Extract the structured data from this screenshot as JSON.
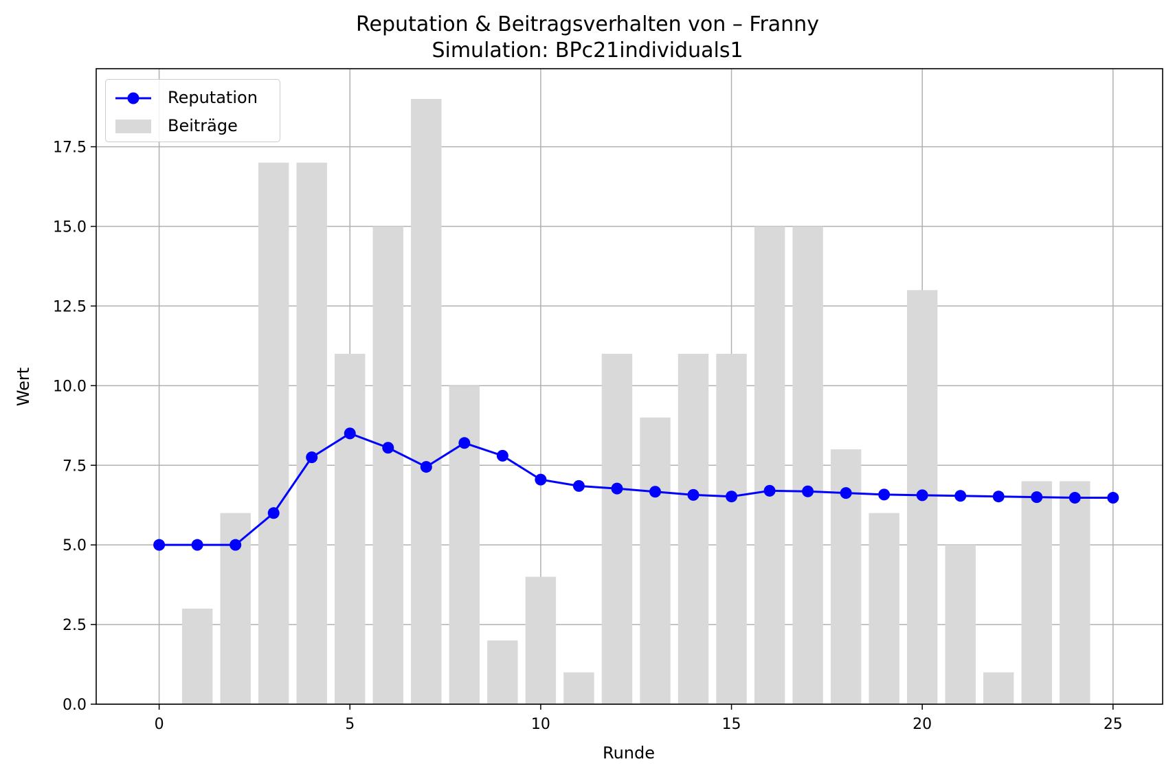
{
  "chart_data": {
    "type": "bar",
    "title": "Reputation & Beitragsverhalten von – Franny",
    "subtitle": "Simulation: BPc21individuals1",
    "xlabel": "Runde",
    "ylabel": "Wert",
    "xlim": [
      -1.65,
      26.3
    ],
    "ylim": [
      0,
      19.95
    ],
    "xticks": [
      0,
      5,
      10,
      15,
      20,
      25
    ],
    "yticks": [
      0.0,
      2.5,
      5.0,
      7.5,
      10.0,
      12.5,
      15.0,
      17.5
    ],
    "xtick_labels": [
      "0",
      "5",
      "10",
      "15",
      "20",
      "25"
    ],
    "ytick_labels": [
      "0.0",
      "2.5",
      "5.0",
      "7.5",
      "10.0",
      "12.5",
      "15.0",
      "17.5"
    ],
    "grid": true,
    "legend_position": "upper-left",
    "series": [
      {
        "name": "Reputation",
        "type": "line",
        "color": "#0000ff",
        "marker": "circle",
        "x": [
          0,
          1,
          2,
          3,
          4,
          5,
          6,
          7,
          8,
          9,
          10,
          11,
          12,
          13,
          14,
          15,
          16,
          17,
          18,
          19,
          20,
          21,
          22,
          23,
          24,
          25
        ],
        "values": [
          5.0,
          5.0,
          5.0,
          6.0,
          7.75,
          8.5,
          8.05,
          7.45,
          8.2,
          7.8,
          7.05,
          6.85,
          6.77,
          6.67,
          6.57,
          6.52,
          6.7,
          6.68,
          6.63,
          6.58,
          6.56,
          6.54,
          6.52,
          6.5,
          6.48,
          6.48
        ]
      },
      {
        "name": "Beiträge",
        "type": "bar",
        "color": "#d9d9d9",
        "x": [
          1,
          2,
          3,
          4,
          5,
          6,
          7,
          8,
          9,
          10,
          11,
          12,
          13,
          14,
          15,
          16,
          17,
          18,
          19,
          20,
          21,
          22,
          23,
          24
        ],
        "values": [
          3,
          6,
          17,
          17,
          11,
          15,
          19,
          10,
          2,
          4,
          1,
          11,
          9,
          11,
          11,
          15,
          15,
          8,
          6,
          13,
          5,
          1,
          7,
          7
        ]
      }
    ]
  }
}
